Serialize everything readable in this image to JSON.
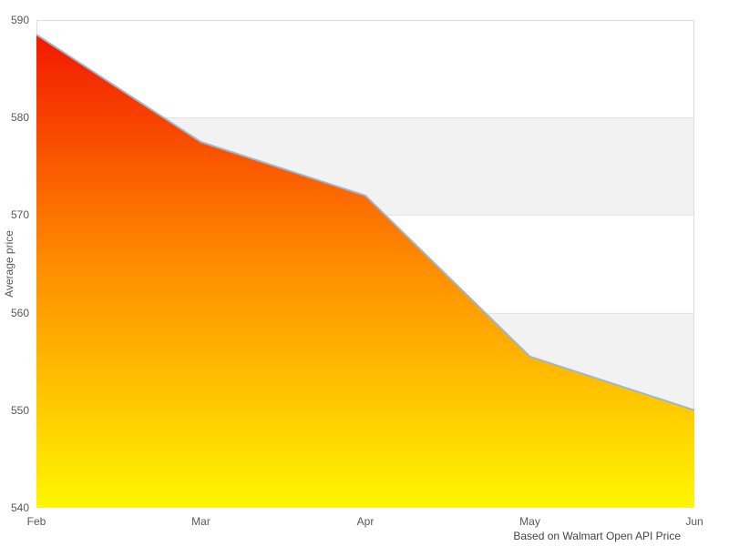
{
  "page": {
    "background": "#ffffff"
  },
  "chart_data": {
    "type": "area",
    "title": "",
    "x_labels": [
      "Feb",
      "Mar",
      "Apr",
      "May",
      "Jun"
    ],
    "series": [
      {
        "name": "Average price",
        "values": [
          588.5,
          577.5,
          572,
          555.5,
          550
        ]
      }
    ],
    "ylabel": "Average price",
    "xlabel": "",
    "ylim": [
      540,
      590
    ],
    "yticks": [
      590,
      580,
      570,
      560,
      550,
      540
    ],
    "grid": "striped-horizontal-bands",
    "legend": "none",
    "caption": "Based on Walmart Open API Price",
    "colors": {
      "area_gradient_top": "#f21000",
      "area_gradient_mid": "#ff8c00",
      "area_gradient_bottom": "#fff600",
      "line": "#9bb7d4",
      "band": "#f2f2f2",
      "gridline": "#e4e4e4",
      "border": "#dcdcdc",
      "tick_text": "#58595b",
      "axis_title_text": "#58595b",
      "caption_text": "#444444",
      "background": "#ffffff"
    }
  }
}
